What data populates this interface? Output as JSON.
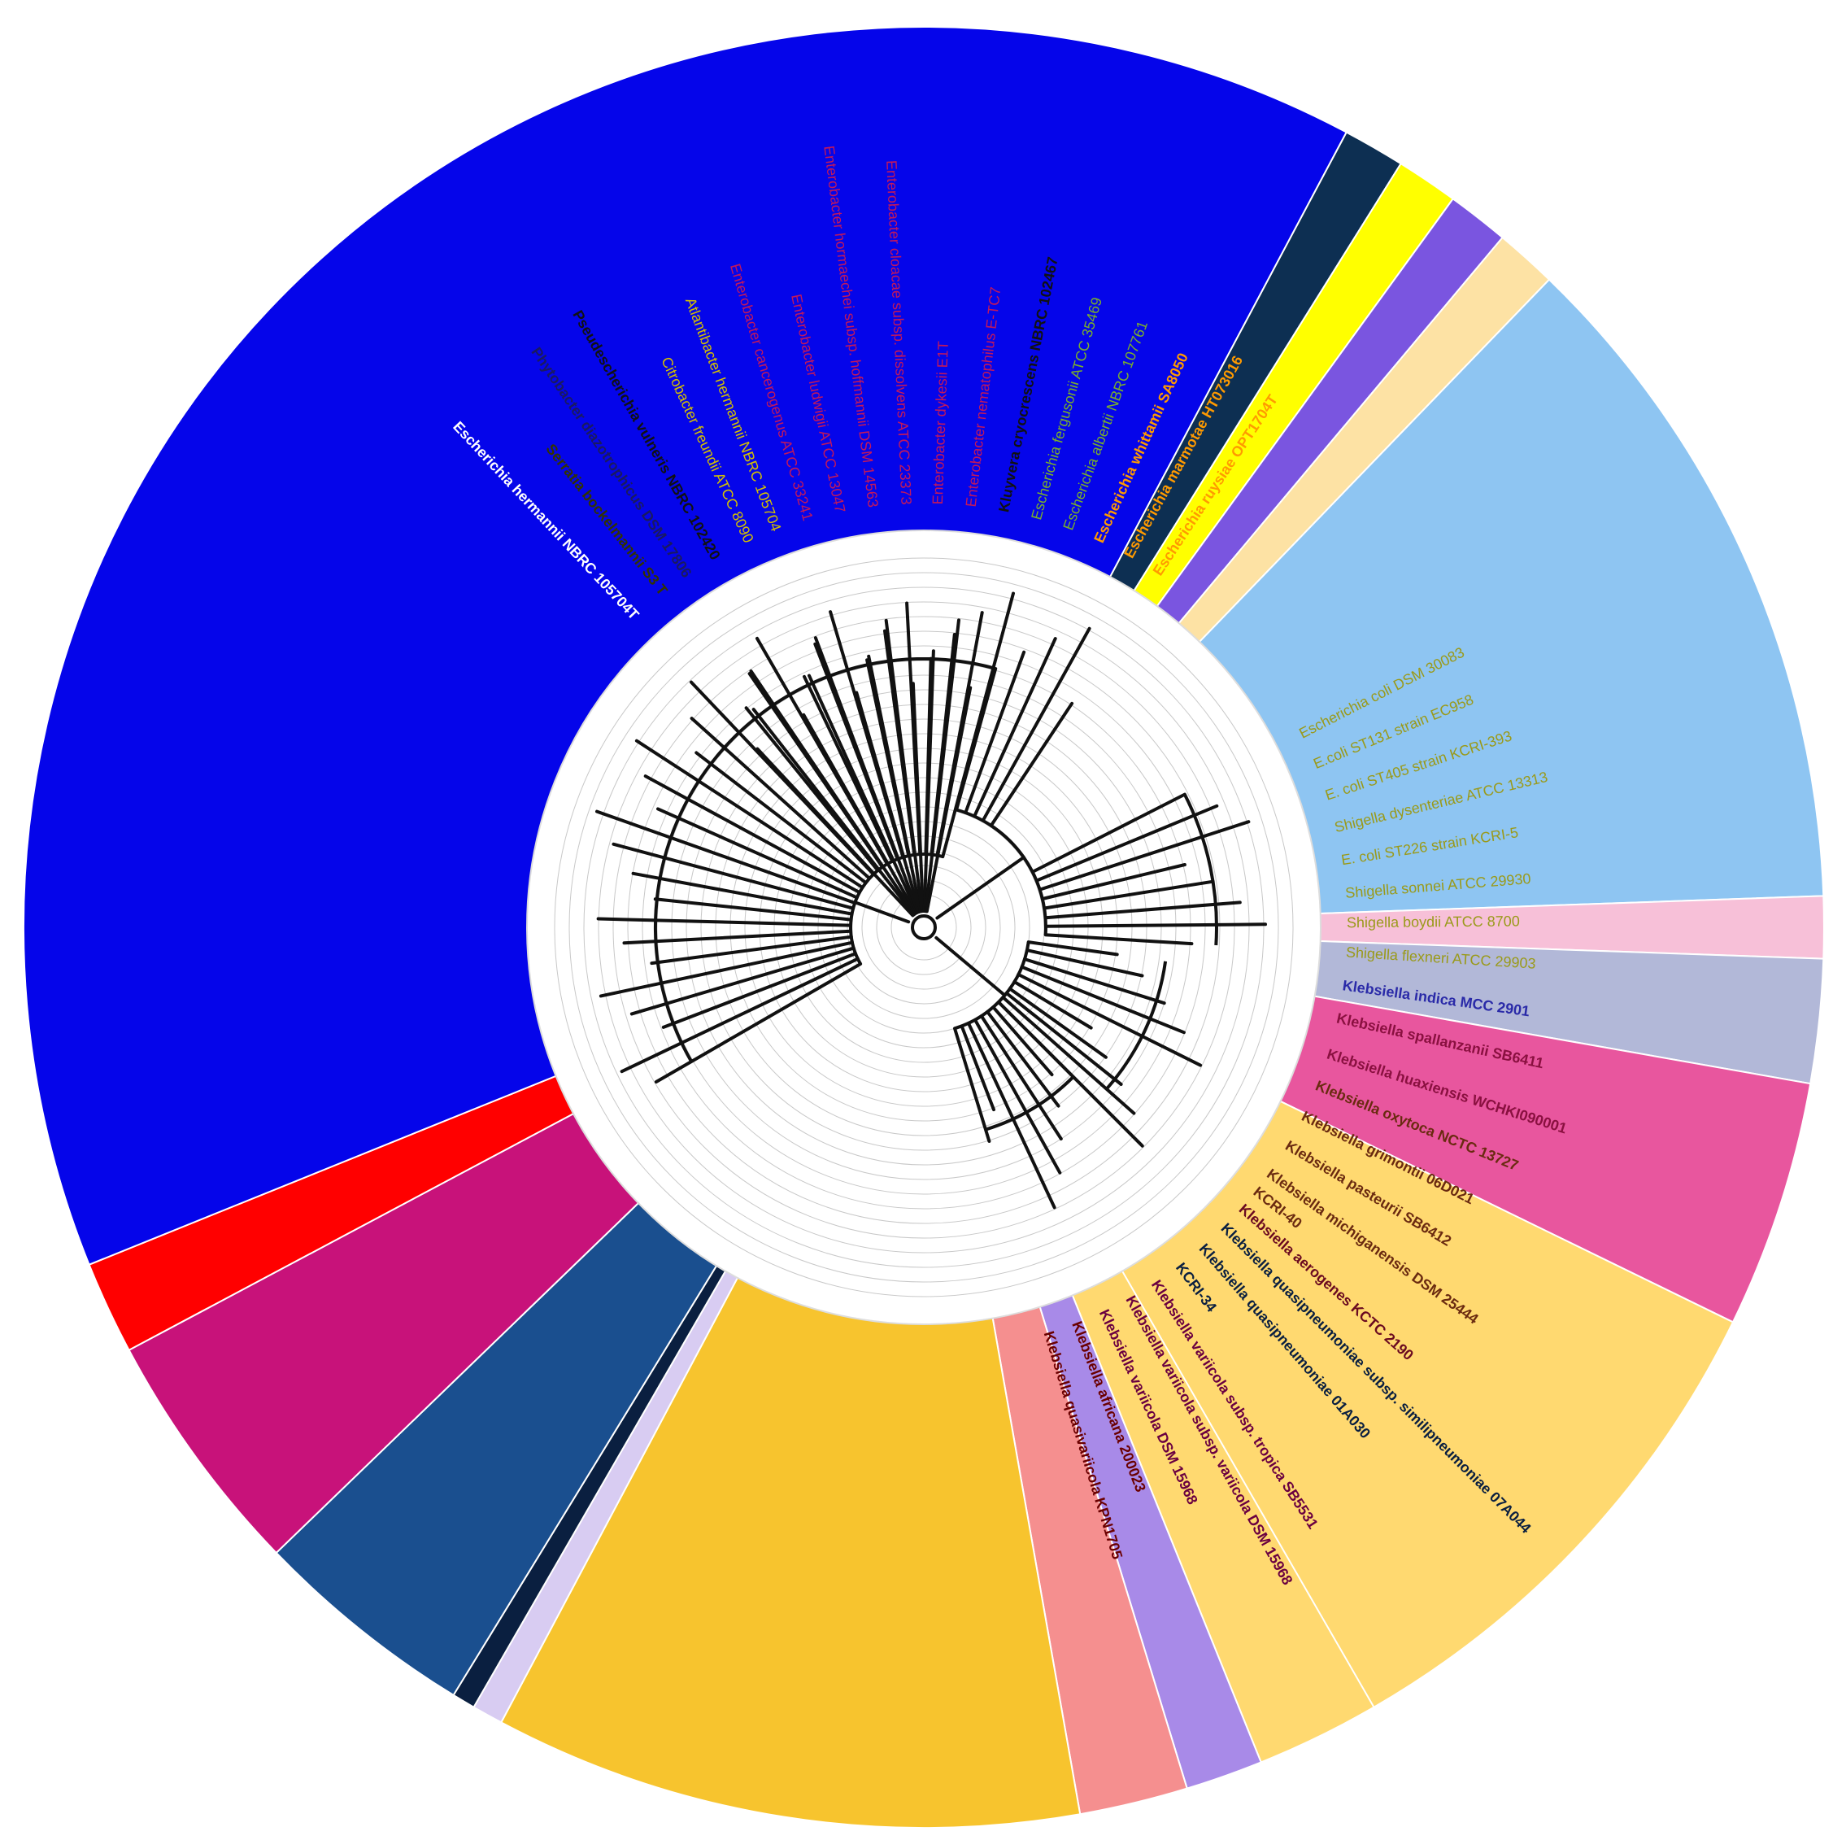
{
  "colors": {
    "background": "#ffffff",
    "inner_disc": "#ffffff",
    "guide_ring": "#c8c8c8",
    "branch": "#111111"
  },
  "sectors": [
    {
      "id": "yellow-bright",
      "a0": 0,
      "a1": 68,
      "color": "#ffd970"
    },
    {
      "id": "lavender",
      "a0": 68,
      "a1": 73,
      "color": "#a88ae8"
    },
    {
      "id": "salmon",
      "a0": 73,
      "a1": 80,
      "color": "#f58f8f"
    },
    {
      "id": "amber",
      "a0": 80,
      "a1": 118,
      "color": "#f7c42e"
    },
    {
      "id": "aerogenes",
      "a0": 118,
      "a1": 120,
      "color": "#d8ccf2"
    },
    {
      "id": "navy-dark",
      "a0": 120,
      "a1": 121.5,
      "color": "#0a1f40"
    },
    {
      "id": "navy",
      "a0": 121.5,
      "a1": 136,
      "color": "#1a4f8f"
    },
    {
      "id": "magenta",
      "a0": 136,
      "a1": 152,
      "color": "#c8127a"
    },
    {
      "id": "red",
      "a0": 152,
      "a1": 158,
      "color": "#ff0000"
    },
    {
      "id": "blue",
      "a0": 158,
      "a1": 298,
      "color": "#0505ea"
    },
    {
      "id": "dark-teal",
      "a0": 298,
      "a1": 302,
      "color": "#0d2f52"
    },
    {
      "id": "yellow",
      "a0": 302,
      "a1": 306,
      "color": "#ffff00"
    },
    {
      "id": "violet",
      "a0": 306,
      "a1": 310,
      "color": "#7a55e0"
    },
    {
      "id": "wheat",
      "a0": 310,
      "a1": 314,
      "color": "#fde2a4"
    },
    {
      "id": "light-blue",
      "a0": 314,
      "a1": 358,
      "color": "#8ec5f2"
    },
    {
      "id": "pink",
      "a0": 358,
      "a1": 362,
      "color": "#f7c0d8"
    },
    {
      "id": "grey-blue",
      "a0": 362,
      "a1": 370,
      "color": "#b2b8d8"
    },
    {
      "id": "hot-pink",
      "a0": 370,
      "a1": 386,
      "color": "#e8569e"
    },
    {
      "id": "yellow-bright-2",
      "a0": 386,
      "a1": 420,
      "color": "#ffd970"
    }
  ],
  "leaves": [
    {
      "label": "Escherichia coli DSM 30083",
      "angle": -27,
      "color": "#9a9a1a",
      "bold": false
    },
    {
      "label": "E.coli ST131 strain EC958",
      "angle": -22.5,
      "color": "#9a9a1a",
      "bold": false
    },
    {
      "label": "E. coli ST405 strain KCRI-393",
      "angle": -18,
      "color": "#9a9a1a",
      "bold": false
    },
    {
      "label": "Shigella dysenteriae ATCC 13313",
      "angle": -13.5,
      "color": "#9a9a1a",
      "bold": false
    },
    {
      "label": "E. coli ST226 strain KCRI-5",
      "angle": -9,
      "color": "#9a9a1a",
      "bold": false
    },
    {
      "label": "Shigella sonnei ATCC 29930",
      "angle": -4.5,
      "color": "#9a9a1a",
      "bold": false
    },
    {
      "label": "Shigella boydii ATCC 8700",
      "angle": -0.5,
      "color": "#9a9a1a",
      "bold": false
    },
    {
      "label": "Shigella flexneri ATCC 29903",
      "angle": 3.5,
      "color": "#9a9a1a",
      "bold": false
    },
    {
      "label": "Klebsiella indica MCC 2901",
      "angle": 8,
      "color": "#2a2aa8",
      "bold": true
    },
    {
      "label": "Klebsiella spallanzanii SB6411",
      "angle": 12.5,
      "color": "#8a1040",
      "bold": true
    },
    {
      "label": "Klebsiella huaxiensis WCHKI090001",
      "angle": 17.5,
      "color": "#8a1040",
      "bold": true
    },
    {
      "label": "Klebsiella oxytoca NCTC 13727",
      "angle": 22,
      "color": "#6a2a10",
      "bold": true
    },
    {
      "label": "Klebsiella grimontii 06D021",
      "angle": 26.5,
      "color": "#6a2a10",
      "bold": true
    },
    {
      "label": "Klebsiella pasteurii SB6412",
      "angle": 31,
      "color": "#6a2a10",
      "bold": true
    },
    {
      "label": "Klebsiella michiganensis DSM 25444",
      "angle": 35.5,
      "color": "#6a2a10",
      "bold": true
    },
    {
      "label": "KCRI-40",
      "angle": 38.5,
      "color": "#6a2a10",
      "bold": true
    },
    {
      "label": "Klebsiella aerogenes KCTC 2190",
      "angle": 41.5,
      "color": "#6a0a20",
      "bold": true
    },
    {
      "label": "Klebsiella quasipneumoniae subsp. similipneumoniae 07A044",
      "angle": 45,
      "color": "#0a1f40",
      "bold": true
    },
    {
      "label": "Klebsiella quasipneumoniae 01A030",
      "angle": 49,
      "color": "#0a1f40",
      "bold": true
    },
    {
      "label": "KCRI-34",
      "angle": 53,
      "color": "#0a1f40",
      "bold": true
    },
    {
      "label": "Klebsiella variicola subsp. tropica SB5531",
      "angle": 57,
      "color": "#6a0040",
      "bold": true
    },
    {
      "label": "Klebsiella variicola subsp. variicola DSM 15968",
      "angle": 61,
      "color": "#6a0040",
      "bold": true
    },
    {
      "label": "Klebsiella variicola DSM 15968",
      "angle": 65,
      "color": "#6a0040",
      "bold": true
    },
    {
      "label": "Klebsiella africana 200023",
      "angle": 69,
      "color": "#6a0000",
      "bold": true
    },
    {
      "label": "Klebsiella quasivariicola KPN1705",
      "angle": 73,
      "color": "#6a0000",
      "bold": true
    },
    {
      "label": "Escherichia hermannii NBRC 105704T",
      "angle": -133,
      "color": "#ffffff",
      "bold": true
    },
    {
      "label": "Serratia bockelmannii S3 T",
      "angle": -128,
      "color": "#333300",
      "bold": true
    },
    {
      "label": "Phytobacter diazotrophicus DSM 17806",
      "angle": -124,
      "color": "#1a1a60",
      "bold": true
    },
    {
      "label": "Pseudescherichia vulneris NBRC 102420",
      "angle": -119.5,
      "color": "#111111",
      "bold": true
    },
    {
      "label": "Citrobacter freundii ATCC 8090",
      "angle": -114.5,
      "color": "#d4c000",
      "bold": false
    },
    {
      "label": "Atlantibacter hermannii NBRC 105704",
      "angle": -110.5,
      "color": "#d4c000",
      "bold": false
    },
    {
      "label": "Enterobacter cancerogenus ATCC 33241",
      "angle": -106,
      "color": "#c2185b",
      "bold": false
    },
    {
      "label": "Enterobacter ludwigii ATCC 13047",
      "angle": -101.5,
      "color": "#c2185b",
      "bold": false
    },
    {
      "label": "Enterobacter hormaechei subsp. hoffmannii DSM 14563",
      "angle": -97,
      "color": "#c2185b",
      "bold": false
    },
    {
      "label": "Enterobacter cloacae subsp. dissolvens ATCC 23373",
      "angle": -92.5,
      "color": "#c2185b",
      "bold": false
    },
    {
      "label": "Enterobacter dykesii E1T",
      "angle": -88,
      "color": "#c2185b",
      "bold": false
    },
    {
      "label": "Enterobacter nematophilus E-TC7",
      "angle": -83.5,
      "color": "#c2185b",
      "bold": false
    },
    {
      "label": "Kluyvera cryocrescens NBRC 102467",
      "angle": -79,
      "color": "#111111",
      "bold": true
    },
    {
      "label": "Escherichia fergusonii ATCC 35469",
      "angle": -74.5,
      "color": "#7ab02a",
      "bold": false
    },
    {
      "label": "Escherichia albertii NBRC 107761",
      "angle": -70,
      "color": "#7ab02a",
      "bold": false
    },
    {
      "label": "Escherichia whittamii SA8050",
      "angle": -65.5,
      "color": "#ff9a00",
      "bold": true
    },
    {
      "label": "Escherichia marmotae HT073016",
      "angle": -61,
      "color": "#ff9a00",
      "bold": true
    },
    {
      "label": "Escherichia ruysiae OPT1704T",
      "angle": -56.5,
      "color": "#ff9a00",
      "bold": true
    }
  ]
}
